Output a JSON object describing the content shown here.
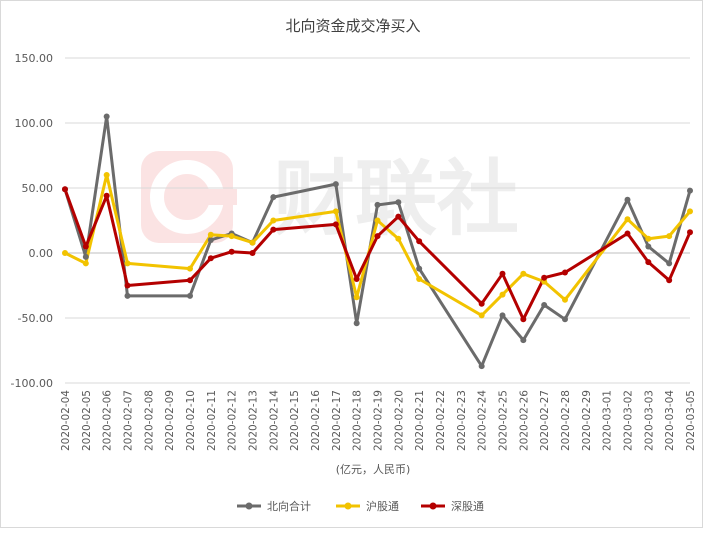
{
  "chart_data": {
    "type": "line",
    "title": "北向资金成交净买入",
    "xlabel": "(亿元，人民币)",
    "ylabel": "",
    "ylim": [
      -100,
      150
    ],
    "yticks": [
      150,
      100,
      50,
      0,
      -50,
      -100
    ],
    "ytick_labels": [
      "150.00",
      "100.00",
      "50.00",
      "0.00",
      "-50.00",
      "-100.00"
    ],
    "grid": true,
    "legend": "bottom",
    "watermark": "财联社",
    "x": [
      "2020-02-04",
      "2020-02-05",
      "2020-02-06",
      "2020-02-07",
      "2020-02-08",
      "2020-02-09",
      "2020-02-10",
      "2020-02-11",
      "2020-02-12",
      "2020-02-13",
      "2020-02-14",
      "2020-02-15",
      "2020-02-16",
      "2020-02-17",
      "2020-02-18",
      "2020-02-19",
      "2020-02-20",
      "2020-02-21",
      "2020-02-22",
      "2020-02-23",
      "2020-02-24",
      "2020-02-25",
      "2020-02-26",
      "2020-02-27",
      "2020-02-28",
      "2020-02-29",
      "2020-03-01",
      "2020-03-02",
      "2020-03-03",
      "2020-03-04",
      "2020-03-05"
    ],
    "series": [
      {
        "name": "北向合计",
        "color": "#6b6b6b",
        "values": [
          49,
          -3,
          105,
          -33,
          null,
          null,
          -33,
          10,
          15,
          8,
          43,
          null,
          null,
          53,
          -54,
          37,
          39,
          -12,
          null,
          null,
          -87,
          -48,
          -67,
          -40,
          -51,
          null,
          null,
          41,
          5,
          -8,
          48
        ]
      },
      {
        "name": "沪股通",
        "color": "#f2c300",
        "values": [
          0,
          -8,
          60,
          -8,
          null,
          null,
          -12,
          14,
          13,
          8,
          25,
          null,
          null,
          32,
          -34,
          25,
          11,
          -20,
          null,
          null,
          -48,
          -32,
          -16,
          -22,
          -36,
          null,
          null,
          26,
          11,
          13,
          32
        ]
      },
      {
        "name": "深股通",
        "color": "#b40000",
        "values": [
          49,
          5,
          44,
          -25,
          null,
          null,
          -21,
          -4,
          1,
          0,
          18,
          null,
          null,
          22,
          -20,
          13,
          28,
          9,
          null,
          null,
          -39,
          -16,
          -51,
          -19,
          -15,
          null,
          null,
          15,
          -7,
          -21,
          16
        ]
      }
    ]
  }
}
